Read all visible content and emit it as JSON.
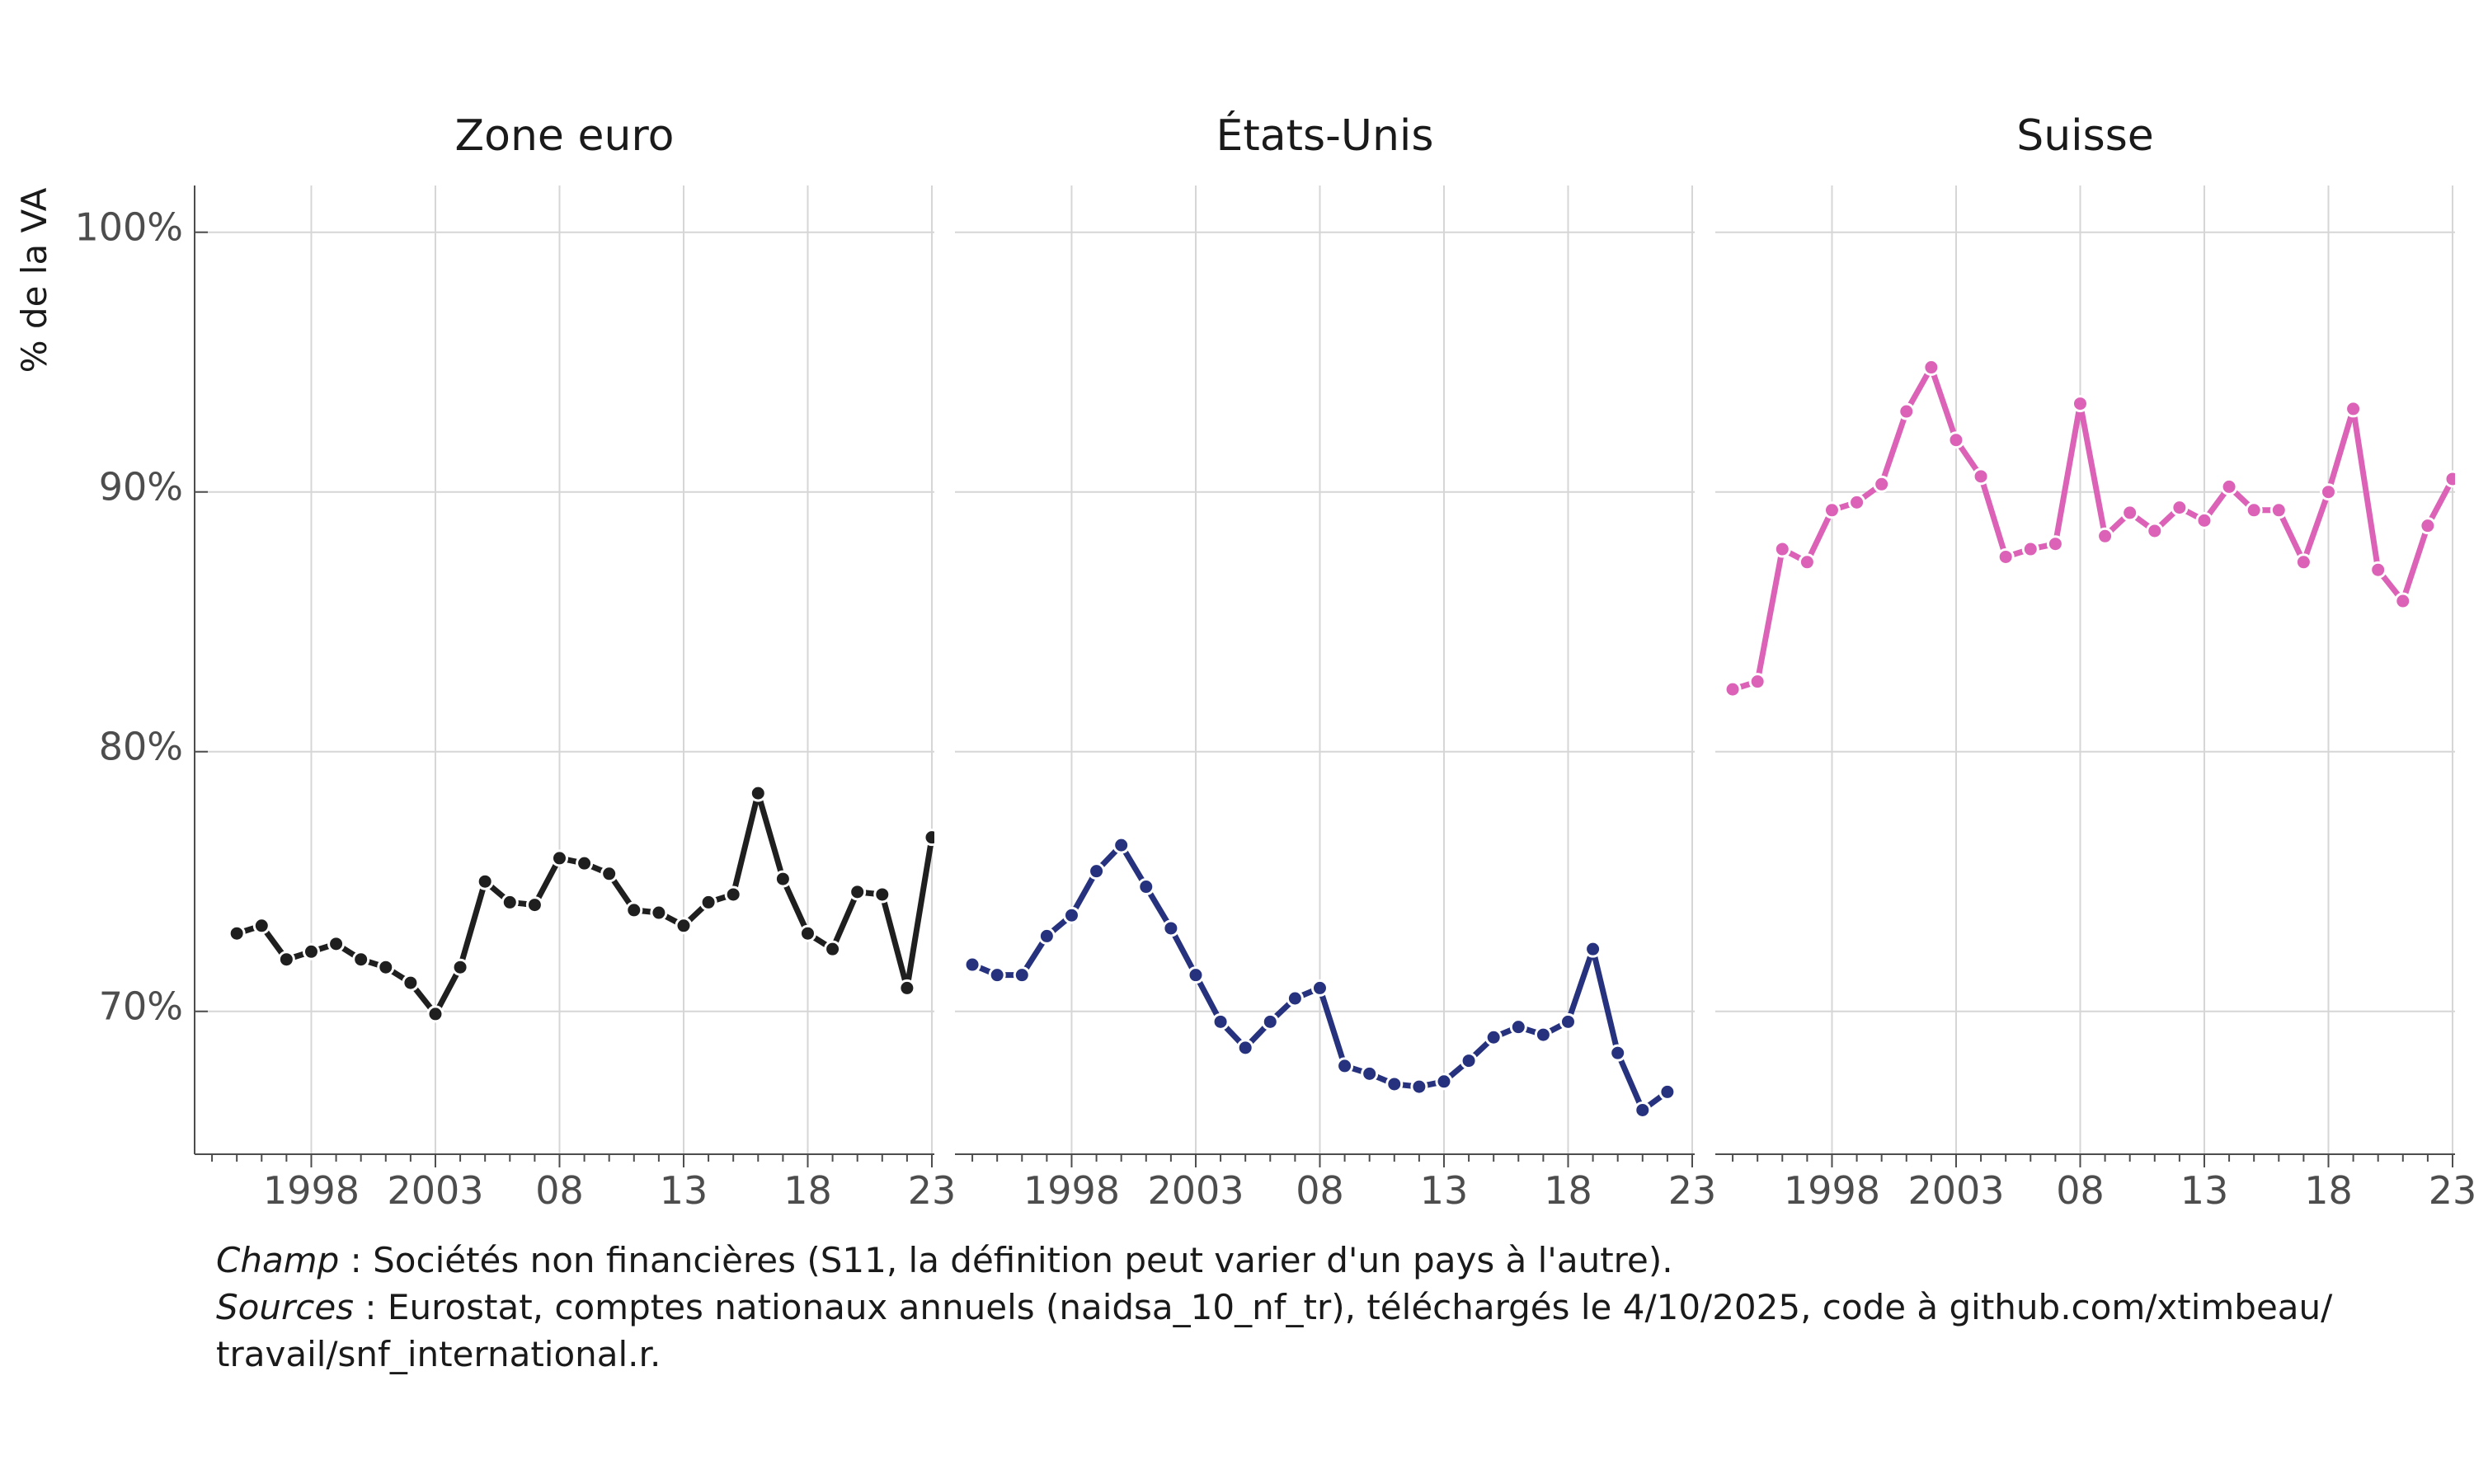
{
  "chart_data": {
    "type": "line",
    "ylabel": "% de la VA",
    "ylim": [
      64.5,
      101.8
    ],
    "y_ticks": [
      70,
      80,
      90,
      100
    ],
    "y_tick_labels": [
      "70%",
      "80%",
      "90%",
      "100%"
    ],
    "x_ticks": [
      1998,
      2003,
      2008,
      2013,
      2018,
      2023
    ],
    "x_tick_labels": [
      "1998",
      "2003",
      "08",
      "13",
      "18",
      "23"
    ],
    "xlim": [
      1993.3,
      2023.1
    ],
    "grid": true,
    "legend": "none",
    "facets": [
      {
        "title": "Zone euro",
        "color": "#1f1f1f",
        "x": [
          1995,
          1996,
          1997,
          1998,
          1999,
          2000,
          2001,
          2002,
          2003,
          2004,
          2005,
          2006,
          2007,
          2008,
          2009,
          2010,
          2011,
          2012,
          2013,
          2014,
          2015,
          2016,
          2017,
          2018,
          2019,
          2020,
          2021,
          2022,
          2023
        ],
        "values": [
          73.0,
          73.3,
          72.0,
          72.3,
          72.6,
          72.0,
          71.7,
          71.1,
          69.9,
          71.7,
          75.0,
          74.2,
          74.1,
          75.9,
          75.7,
          75.3,
          73.9,
          73.8,
          73.3,
          74.2,
          74.5,
          78.4,
          75.1,
          73.0,
          72.4,
          74.6,
          74.5,
          70.9,
          76.7
        ]
      },
      {
        "title": "États-Unis",
        "color": "#26327e",
        "x": [
          1994,
          1995,
          1996,
          1997,
          1998,
          1999,
          2000,
          2001,
          2002,
          2003,
          2004,
          2005,
          2006,
          2007,
          2008,
          2009,
          2010,
          2011,
          2012,
          2013,
          2014,
          2015,
          2016,
          2017,
          2018,
          2019,
          2020,
          2021,
          2022
        ],
        "values": [
          71.8,
          71.4,
          71.4,
          72.9,
          73.7,
          75.4,
          76.4,
          74.8,
          73.2,
          71.4,
          69.6,
          68.6,
          69.6,
          70.5,
          70.9,
          67.9,
          67.6,
          67.2,
          67.1,
          67.3,
          68.1,
          69.0,
          69.4,
          69.1,
          69.6,
          72.4,
          68.4,
          66.2,
          66.9
        ]
      },
      {
        "title": "Suisse",
        "color": "#db62b6",
        "x": [
          1994,
          1995,
          1996,
          1997,
          1998,
          1999,
          2000,
          2001,
          2002,
          2003,
          2004,
          2005,
          2006,
          2007,
          2008,
          2009,
          2010,
          2011,
          2012,
          2013,
          2014,
          2015,
          2016,
          2017,
          2018,
          2019,
          2020,
          2021,
          2022,
          2023
        ],
        "values": [
          82.4,
          82.7,
          87.8,
          87.3,
          89.3,
          89.6,
          90.3,
          93.1,
          94.8,
          92.0,
          90.6,
          87.5,
          87.8,
          88.0,
          93.4,
          88.3,
          89.2,
          88.5,
          89.4,
          88.9,
          90.2,
          89.3,
          89.3,
          87.3,
          90.0,
          93.2,
          87.0,
          85.8,
          88.7,
          90.5
        ]
      }
    ]
  },
  "caption": {
    "champ_label": "Champ",
    "champ_text": " : Sociétés non financières (S11, la définition peut varier d'un pays à l'autre).",
    "sources_label": "Sources",
    "sources_text": " : Eurostat, comptes nationaux annuels (naidsa_10_nf_tr), téléchargés le 4/10/2025, code à github.com/xtimbeau/",
    "sources_text_2": "travail/snf_international.r."
  }
}
